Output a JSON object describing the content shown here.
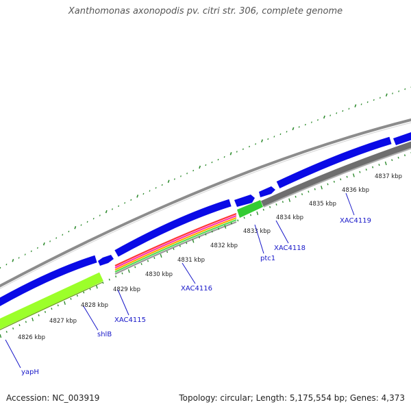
{
  "title": "Xanthomonas axonopodis pv. citri str. 306, complete genome",
  "accession": "Accession: NC_003919",
  "topology": "Topology: circular; Length: 5,175,554 bp; Genes: 4,373",
  "colors": {
    "backbone": "#8c8c8c",
    "cds": "#0a0ae6",
    "gc_skew": "#9cff2a",
    "pseudo": "#6e6e6e",
    "ticks": "#2e8b2e",
    "gene_label": "#1515c8"
  },
  "kbp_labels": [
    "4826 kbp",
    "4827 kbp",
    "4828 kbp",
    "4829 kbp",
    "4830 kbp",
    "4831 kbp",
    "4832 kbp",
    "4833 kbp",
    "4834 kbp",
    "4835 kbp",
    "4836 kbp",
    "4837 kbp"
  ],
  "genes": [
    "yapH",
    "shlB",
    "XAC4115",
    "XAC4116",
    "ptc1",
    "XAC4118",
    "XAC4119"
  ]
}
